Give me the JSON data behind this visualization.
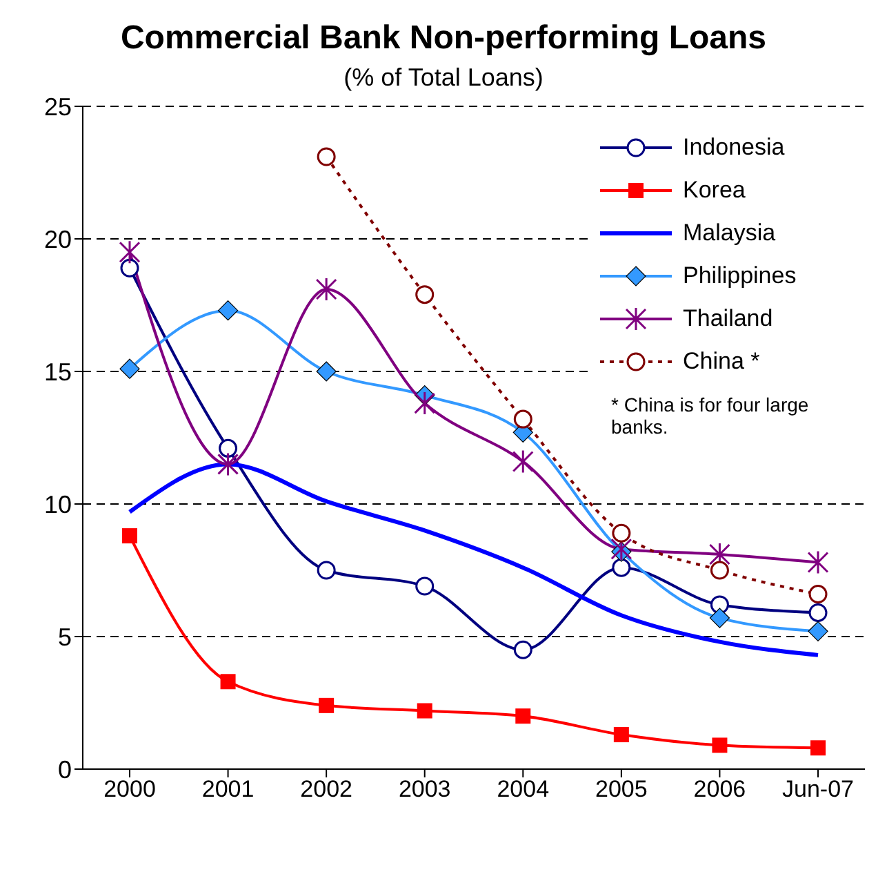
{
  "chart_data": {
    "type": "line",
    "title": "Commercial Bank Non-performing Loans",
    "subtitle": "(% of Total Loans)",
    "categories": [
      "2000",
      "2001",
      "2002",
      "2003",
      "2004",
      "2005",
      "2006",
      "Jun-07"
    ],
    "series": [
      {
        "name": "Indonesia",
        "color": "#000080",
        "marker": "circle",
        "values": [
          18.9,
          12.1,
          7.5,
          6.9,
          4.5,
          7.6,
          6.2,
          5.9
        ]
      },
      {
        "name": "Korea",
        "color": "#ff0000",
        "marker": "square",
        "values": [
          8.8,
          3.3,
          2.4,
          2.2,
          2.0,
          1.3,
          0.9,
          0.8
        ]
      },
      {
        "name": "Malaysia",
        "color": "#0000ff",
        "marker": "none",
        "values": [
          9.7,
          11.5,
          10.1,
          9.0,
          7.6,
          5.8,
          4.8,
          4.3
        ]
      },
      {
        "name": "Philippines",
        "color": "#3399ff",
        "marker": "diamond",
        "values": [
          15.1,
          17.3,
          15.0,
          14.1,
          12.7,
          8.2,
          5.7,
          5.2
        ]
      },
      {
        "name": "Thailand",
        "color": "#800080",
        "marker": "cross",
        "values": [
          19.5,
          11.5,
          18.1,
          13.8,
          11.6,
          8.3,
          8.1,
          7.8
        ]
      },
      {
        "name": "China *",
        "color": "#800000",
        "marker": "circle",
        "line_style": "dotted",
        "values": [
          null,
          null,
          23.1,
          17.9,
          13.2,
          8.9,
          7.5,
          6.6
        ]
      }
    ],
    "ylim": [
      0,
      25
    ],
    "yticks": [
      0,
      5,
      10,
      15,
      20,
      25
    ],
    "grid": "y",
    "legend": "top right",
    "annotations": [
      "*  China is for four large banks."
    ]
  }
}
